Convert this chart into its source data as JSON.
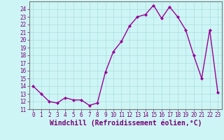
{
  "x": [
    0,
    1,
    2,
    3,
    4,
    5,
    6,
    7,
    8,
    9,
    10,
    11,
    12,
    13,
    14,
    15,
    16,
    17,
    18,
    19,
    20,
    21,
    22,
    23
  ],
  "y": [
    14.0,
    13.0,
    12.0,
    11.8,
    12.5,
    12.2,
    12.2,
    11.5,
    11.8,
    15.8,
    18.5,
    19.8,
    21.8,
    23.0,
    23.3,
    24.5,
    22.8,
    24.3,
    23.0,
    21.3,
    18.0,
    15.0,
    21.3,
    13.2
  ],
  "line_color": "#990099",
  "marker": "D",
  "marker_size": 2,
  "background_color": "#cef5f5",
  "grid_color": "#aadddd",
  "xlabel": "Windchill (Refroidissement éolien,°C)",
  "xlabel_fontsize": 7,
  "xlim": [
    -0.5,
    23.5
  ],
  "ylim": [
    11,
    25
  ],
  "yticks": [
    11,
    12,
    13,
    14,
    15,
    16,
    17,
    18,
    19,
    20,
    21,
    22,
    23,
    24
  ],
  "xticks": [
    0,
    1,
    2,
    3,
    4,
    5,
    6,
    7,
    8,
    9,
    10,
    11,
    12,
    13,
    14,
    15,
    16,
    17,
    18,
    19,
    20,
    21,
    22,
    23
  ],
  "tick_fontsize": 5.5,
  "tick_color": "#770077",
  "spine_color": "#777777",
  "line_width": 1.0,
  "title_color": "#770077"
}
